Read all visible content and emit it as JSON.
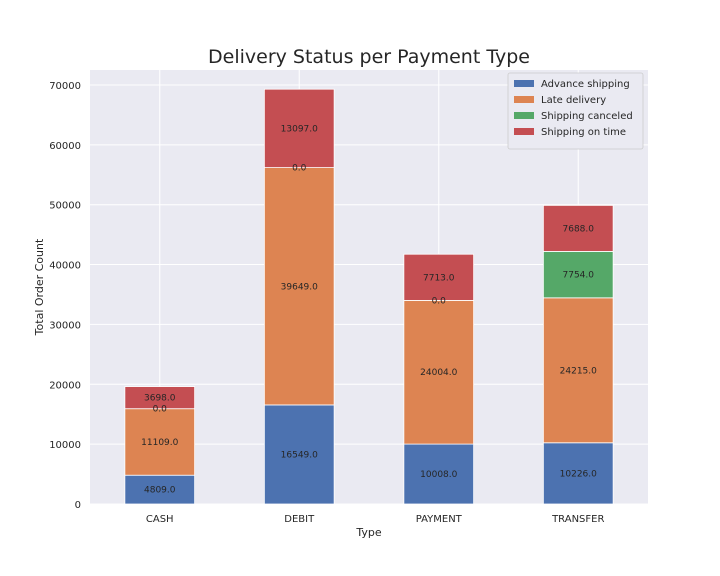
{
  "chart_data": {
    "type": "bar",
    "stacked": true,
    "title": "Delivery Status per Payment Type",
    "xlabel": "Type",
    "ylabel": "Total Order Count",
    "categories": [
      "CASH",
      "DEBIT",
      "PAYMENT",
      "TRANSFER"
    ],
    "ylim": [
      0,
      72500
    ],
    "yticks": [
      0,
      10000,
      20000,
      30000,
      40000,
      50000,
      60000,
      70000
    ],
    "grid": true,
    "legend_position": "top-right",
    "series": [
      {
        "name": "Advance shipping",
        "color": "#4c72b0",
        "values": [
          4809.0,
          16549.0,
          10008.0,
          10226.0
        ]
      },
      {
        "name": "Late delivery",
        "color": "#dd8452",
        "values": [
          11109.0,
          39649.0,
          24004.0,
          24215.0
        ]
      },
      {
        "name": "Shipping canceled",
        "color": "#55a868",
        "values": [
          0.0,
          0.0,
          0.0,
          7754.0
        ]
      },
      {
        "name": "Shipping on time",
        "color": "#c44e52",
        "values": [
          3698.0,
          13097.0,
          7713.0,
          7688.0
        ]
      }
    ],
    "data_labels": [
      {
        "category": "CASH",
        "labels": [
          "4809.0",
          "11109.0",
          "0.0",
          "3698.0"
        ]
      },
      {
        "category": "DEBIT",
        "labels": [
          "16549.0",
          "39649.0",
          "0.0",
          "13097.0"
        ]
      },
      {
        "category": "PAYMENT",
        "labels": [
          "10008.0",
          "24004.0",
          "0.0",
          "7713.0"
        ]
      },
      {
        "category": "TRANSFER",
        "labels": [
          "10226.0",
          "24215.0",
          "7754.0",
          "7688.0"
        ]
      }
    ],
    "colors": {
      "plot_background": "#eaeaf2",
      "grid": "#ffffff"
    }
  }
}
